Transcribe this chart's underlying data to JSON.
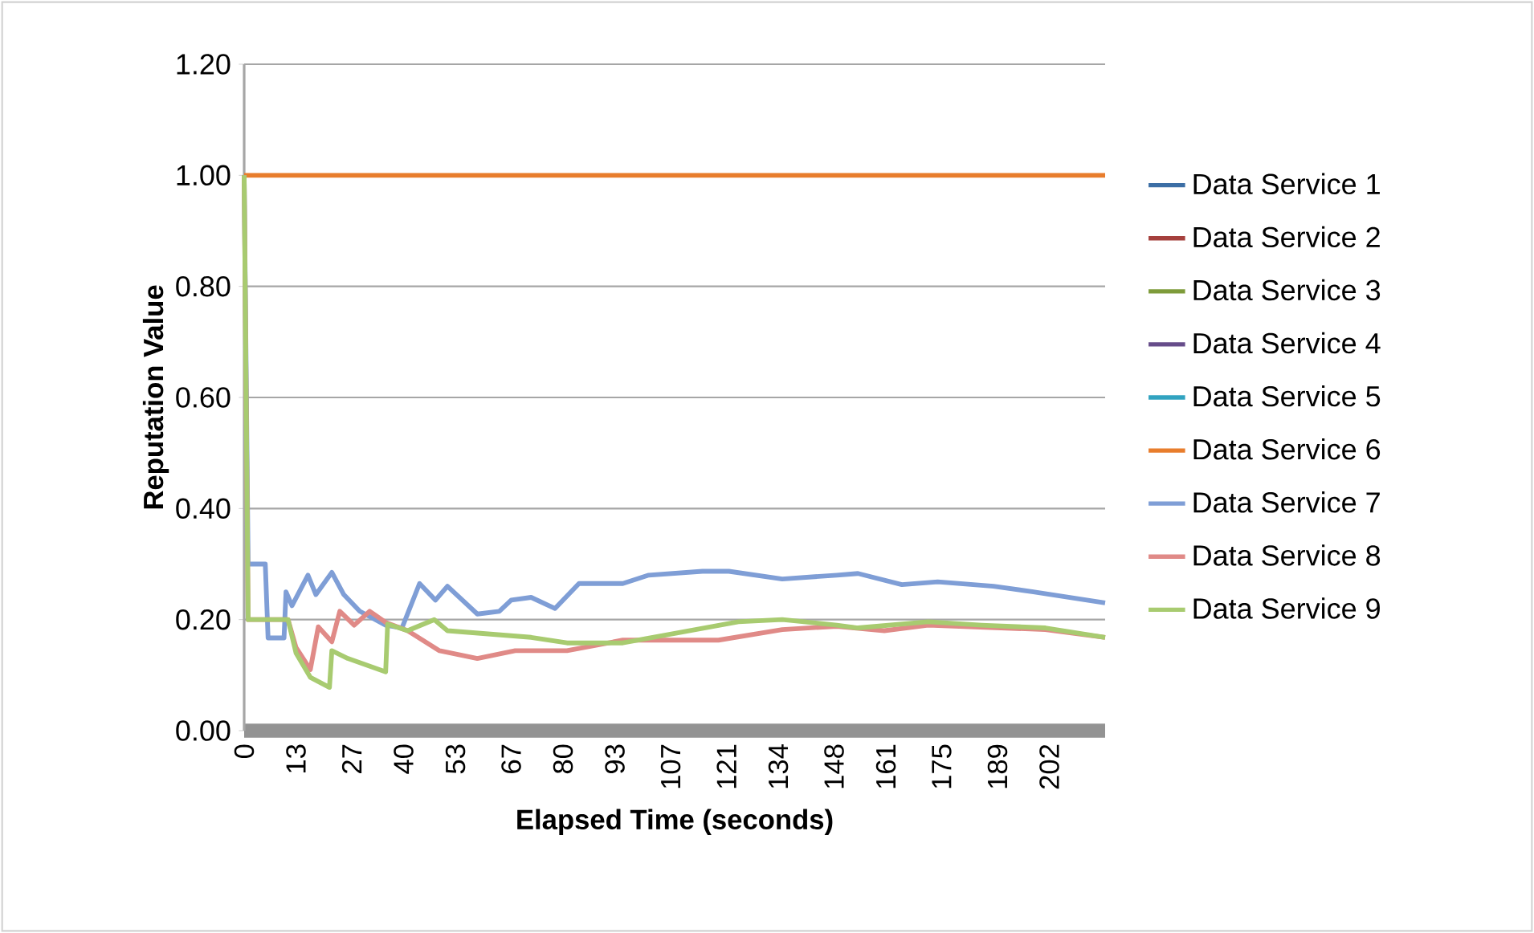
{
  "chart_data": {
    "type": "line",
    "xlabel": "Elapsed Time (seconds)",
    "ylabel": "Reputation Value",
    "xlim": [
      0,
      216
    ],
    "ylim": [
      0,
      1.2
    ],
    "xticks": [
      0,
      13,
      27,
      40,
      53,
      67,
      80,
      93,
      107,
      121,
      134,
      148,
      161,
      175,
      189,
      202
    ],
    "yticks": [
      {
        "value": 0,
        "label": "0.00"
      },
      {
        "value": 0.2,
        "label": "0.20"
      },
      {
        "value": 0.4,
        "label": "0.40"
      },
      {
        "value": 0.6,
        "label": "0.60"
      },
      {
        "value": 0.8,
        "label": "0.80"
      },
      {
        "value": 1.0,
        "label": "1.00"
      },
      {
        "value": 1.2,
        "label": "1.20"
      }
    ],
    "grid": "y",
    "legend": "right",
    "series": [
      {
        "name": "Data Service 1",
        "color": "#3c6ea5",
        "values": [
          null
        ]
      },
      {
        "name": "Data Service 2",
        "color": "#a5403d",
        "values": [
          null
        ]
      },
      {
        "name": "Data Service 3",
        "color": "#7e9b3a",
        "values": [
          null
        ]
      },
      {
        "name": "Data Service 4",
        "color": "#664c8a",
        "values": [
          null
        ]
      },
      {
        "name": "Data Service 5",
        "color": "#31a3c0",
        "values": [
          null
        ]
      },
      {
        "name": "Data Service 6",
        "color": "#e87d2c",
        "x": [
          0,
          216
        ],
        "values": [
          1.0,
          1.0
        ]
      },
      {
        "name": "Data Service 7",
        "color": "#7f9ed6",
        "x": [
          0,
          1,
          5.3,
          6,
          10,
          10.5,
          12,
          16,
          18,
          22,
          25,
          29,
          35.5,
          39.6,
          44,
          48,
          51,
          58.5,
          64,
          67,
          72,
          78,
          84,
          95,
          101.5,
          115,
          121.6,
          135,
          148.7,
          154,
          165,
          174,
          188,
          198,
          216
        ],
        "values": [
          1.0,
          0.3,
          0.3,
          0.167,
          0.167,
          0.25,
          0.225,
          0.28,
          0.245,
          0.285,
          0.245,
          0.215,
          0.19,
          0.185,
          0.265,
          0.235,
          0.26,
          0.21,
          0.215,
          0.235,
          0.24,
          0.22,
          0.265,
          0.265,
          0.28,
          0.287,
          0.287,
          0.273,
          0.28,
          0.283,
          0.263,
          0.268,
          0.26,
          0.25,
          0.23
        ]
      },
      {
        "name": "Data Service 8",
        "color": "#e08a87",
        "x": [
          0,
          1,
          11,
          13,
          16.6,
          18.6,
          22,
          24,
          27.6,
          31.5,
          35.5,
          41,
          49,
          58.5,
          68,
          81,
          95,
          119,
          135,
          148.7,
          160.6,
          171.6,
          201,
          216
        ],
        "values": [
          1.0,
          0.2,
          0.2,
          0.15,
          0.11,
          0.187,
          0.16,
          0.215,
          0.19,
          0.215,
          0.195,
          0.18,
          0.144,
          0.13,
          0.144,
          0.144,
          0.163,
          0.163,
          0.182,
          0.188,
          0.18,
          0.19,
          0.182,
          0.168
        ]
      },
      {
        "name": "Data Service 9",
        "color": "#a8cb70",
        "x": [
          0,
          1,
          11,
          13,
          16.6,
          21.4,
          22,
          26,
          35.5,
          36,
          41,
          47.7,
          51,
          72,
          81,
          95,
          108,
          124,
          135,
          148.7,
          154,
          171.6,
          185,
          201,
          216
        ],
        "values": [
          1.0,
          0.2,
          0.2,
          0.14,
          0.096,
          0.078,
          0.144,
          0.13,
          0.106,
          0.192,
          0.18,
          0.2,
          0.18,
          0.168,
          0.158,
          0.158,
          0.175,
          0.196,
          0.2,
          0.19,
          0.185,
          0.196,
          0.19,
          0.185,
          0.168
        ]
      }
    ]
  }
}
